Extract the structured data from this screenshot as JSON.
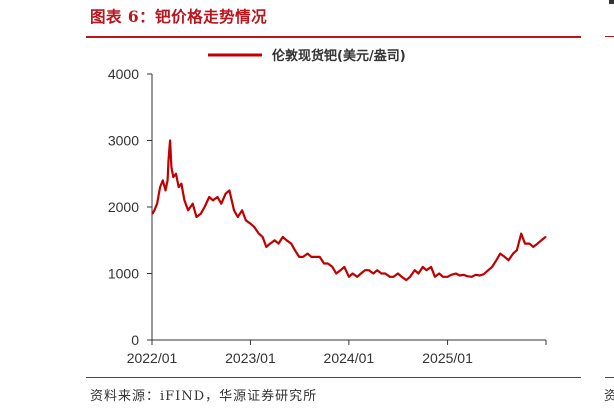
{
  "figure": {
    "title": "图表 6：钯价格走势情况",
    "source": "资料来源：iFIND，华源证券研究所",
    "right_edge_heading": "图",
    "right_edge_note": "资"
  },
  "chart_data": {
    "type": "line",
    "title": "",
    "xlabel": "",
    "ylabel": "",
    "ylim": [
      0,
      4000
    ],
    "yticks": [
      0,
      1000,
      2000,
      3000,
      4000
    ],
    "xlim": [
      "2022-01-01",
      "2026-01-01"
    ],
    "xticks": [
      "2022/01",
      "2023/01",
      "2024/01",
      "2025/01"
    ],
    "legend": "top",
    "grid": false,
    "colors": {
      "series": "#c00000",
      "accent": "#b8151d"
    },
    "series": [
      {
        "name": "伦敦现货钯(美元/盎司)",
        "x": [
          "2022-01-03",
          "2022-01-10",
          "2022-01-20",
          "2022-01-31",
          "2022-02-10",
          "2022-02-20",
          "2022-02-28",
          "2022-03-03",
          "2022-03-07",
          "2022-03-09",
          "2022-03-14",
          "2022-03-21",
          "2022-03-31",
          "2022-04-10",
          "2022-04-20",
          "2022-05-01",
          "2022-05-15",
          "2022-06-01",
          "2022-06-15",
          "2022-07-01",
          "2022-07-15",
          "2022-08-01",
          "2022-08-15",
          "2022-09-01",
          "2022-09-15",
          "2022-10-01",
          "2022-10-15",
          "2022-11-01",
          "2022-11-15",
          "2022-12-01",
          "2022-12-15",
          "2023-01-01",
          "2023-01-15",
          "2023-02-01",
          "2023-02-15",
          "2023-03-01",
          "2023-03-15",
          "2023-04-01",
          "2023-04-15",
          "2023-05-01",
          "2023-05-15",
          "2023-06-01",
          "2023-06-15",
          "2023-07-01",
          "2023-07-15",
          "2023-08-01",
          "2023-08-15",
          "2023-09-01",
          "2023-09-15",
          "2023-10-01",
          "2023-10-15",
          "2023-11-01",
          "2023-11-15",
          "2023-12-01",
          "2023-12-15",
          "2024-01-01",
          "2024-01-15",
          "2024-02-01",
          "2024-02-15",
          "2024-03-01",
          "2024-03-15",
          "2024-04-01",
          "2024-04-15",
          "2024-05-01",
          "2024-05-15",
          "2024-06-01",
          "2024-06-15",
          "2024-07-01",
          "2024-07-15",
          "2024-08-01",
          "2024-08-15",
          "2024-09-01",
          "2024-09-15",
          "2024-10-01",
          "2024-10-15",
          "2024-11-01",
          "2024-11-15",
          "2024-12-01",
          "2024-12-15",
          "2025-01-01",
          "2025-01-15",
          "2025-02-01",
          "2025-02-15",
          "2025-03-01",
          "2025-03-15",
          "2025-04-01",
          "2025-04-15",
          "2025-05-01",
          "2025-05-15",
          "2025-06-01",
          "2025-06-15",
          "2025-07-01",
          "2025-07-15",
          "2025-08-01",
          "2025-08-15",
          "2025-09-01",
          "2025-09-15",
          "2025-10-01",
          "2025-10-15",
          "2025-11-01",
          "2025-11-15",
          "2025-12-01",
          "2025-12-15",
          "2025-12-31"
        ],
        "values": [
          1900,
          1950,
          2050,
          2300,
          2400,
          2250,
          2400,
          2700,
          2900,
          3000,
          2600,
          2450,
          2500,
          2300,
          2350,
          2100,
          1950,
          2050,
          1850,
          1900,
          2000,
          2150,
          2100,
          2150,
          2050,
          2200,
          2250,
          1950,
          1850,
          1950,
          1800,
          1750,
          1700,
          1600,
          1550,
          1400,
          1450,
          1500,
          1450,
          1550,
          1500,
          1450,
          1350,
          1250,
          1250,
          1300,
          1250,
          1250,
          1250,
          1150,
          1150,
          1100,
          1000,
          1050,
          1100,
          950,
          1000,
          950,
          1000,
          1050,
          1050,
          1000,
          1050,
          1000,
          1000,
          950,
          950,
          1000,
          950,
          900,
          950,
          1050,
          1000,
          1100,
          1050,
          1100,
          950,
          1000,
          950,
          950,
          980,
          1000,
          970,
          980,
          960,
          950,
          980,
          970,
          990,
          1050,
          1100,
          1200,
          1300,
          1250,
          1200,
          1300,
          1350,
          1600,
          1450,
          1450,
          1400,
          1450,
          1500,
          1550
        ]
      }
    ]
  }
}
